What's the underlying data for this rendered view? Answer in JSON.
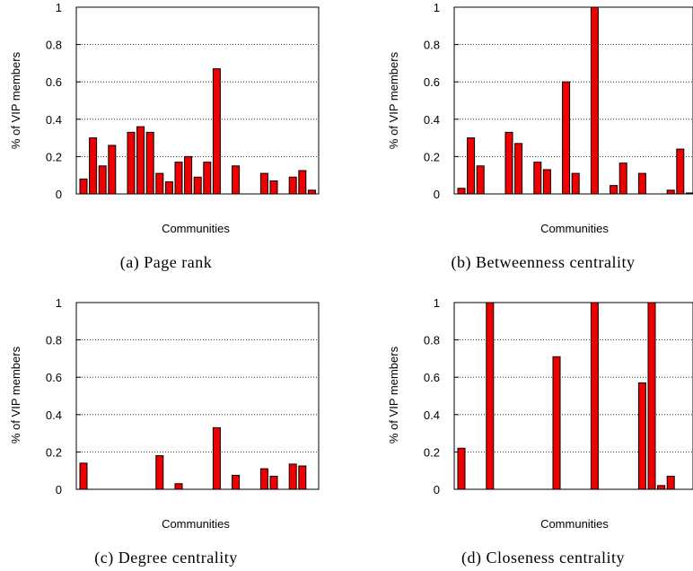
{
  "colors": {
    "bar_fill": "#ee0000",
    "bar_stroke": "#000000",
    "grid": "#000000",
    "frame": "#000000"
  },
  "chart_data": [
    {
      "type": "bar",
      "caption": "(a) Page rank",
      "xlabel": "Communities",
      "ylabel": "% of VIP members",
      "ylim": [
        0,
        1
      ],
      "yticks": [
        "0",
        "0.2",
        "0.4",
        "0.6",
        "0.8",
        "1"
      ],
      "grid": "horizontal dotted",
      "num_slots": 27,
      "values": [
        0.08,
        0.3,
        0.15,
        0.26,
        0,
        0.33,
        0.36,
        0.33,
        0.11,
        0.065,
        0.17,
        0.2,
        0.09,
        0.17,
        0.67,
        0,
        0.15,
        0,
        0,
        0.11,
        0.07,
        0,
        0.09,
        0.125,
        0.02,
        0,
        0
      ]
    },
    {
      "type": "bar",
      "caption": "(b) Betweenness centrality",
      "xlabel": "Communities",
      "ylabel": "% of VIP members",
      "ylim": [
        0,
        1
      ],
      "yticks": [
        "0",
        "0.2",
        "0.4",
        "0.6",
        "0.8",
        "1"
      ],
      "grid": "horizontal dotted",
      "num_slots": 27,
      "values": [
        0.03,
        0.3,
        0.15,
        0,
        0,
        0.33,
        0.27,
        0,
        0.17,
        0.13,
        0,
        0.6,
        0.11,
        0,
        1.0,
        0,
        0.045,
        0.165,
        0,
        0.11,
        0,
        0,
        0.02,
        0.24,
        0.005,
        0,
        0
      ]
    },
    {
      "type": "bar",
      "caption": "(c) Degree centrality",
      "xlabel": "Communities",
      "ylabel": "% of VIP members",
      "ylim": [
        0,
        1
      ],
      "yticks": [
        "0",
        "0.2",
        "0.4",
        "0.6",
        "0.8",
        "1"
      ],
      "grid": "horizontal dotted",
      "num_slots": 27,
      "values": [
        0.14,
        0,
        0,
        0,
        0,
        0,
        0,
        0,
        0.18,
        0,
        0.03,
        0,
        0,
        0,
        0.33,
        0,
        0.075,
        0,
        0,
        0.11,
        0.07,
        0,
        0.135,
        0.125,
        0,
        0,
        0
      ]
    },
    {
      "type": "bar",
      "caption": "(d) Closeness centrality",
      "xlabel": "Communities",
      "ylabel": "% of VIP members",
      "ylim": [
        0,
        1
      ],
      "yticks": [
        "0",
        "0.2",
        "0.4",
        "0.6",
        "0.8",
        "1"
      ],
      "grid": "horizontal dotted",
      "num_slots": 27,
      "values": [
        0.22,
        0,
        0,
        1.0,
        0,
        0,
        0,
        0,
        0,
        0,
        0.71,
        0,
        0,
        0,
        1.0,
        0,
        0,
        0,
        0,
        0.57,
        1.0,
        0.02,
        0.07,
        0,
        0,
        0,
        0
      ]
    }
  ]
}
